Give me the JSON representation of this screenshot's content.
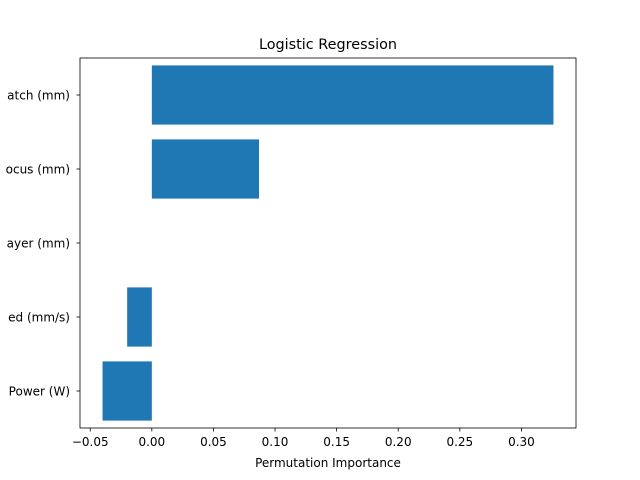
{
  "chart_data": {
    "type": "bar",
    "orientation": "horizontal",
    "title": "Logistic Regression",
    "xlabel": "Permutation Importance",
    "ylabel": "",
    "categories_top_to_bottom": [
      "atch (mm)",
      "ocus (mm)",
      "ayer (mm)",
      "ed (mm/s)",
      "Power (W)"
    ],
    "values": [
      0.326,
      0.087,
      0.0,
      -0.02,
      -0.04
    ],
    "xlim": [
      -0.0583,
      0.3443
    ],
    "xticks": [
      -0.05,
      0.0,
      0.05,
      0.1,
      0.15,
      0.2,
      0.25,
      0.3
    ],
    "xtick_labels": [
      "−0.05",
      "0.00",
      "0.05",
      "0.10",
      "0.15",
      "0.20",
      "0.25",
      "0.30"
    ],
    "bar_color": "#1f77b4",
    "grid": false,
    "legend": "none"
  }
}
